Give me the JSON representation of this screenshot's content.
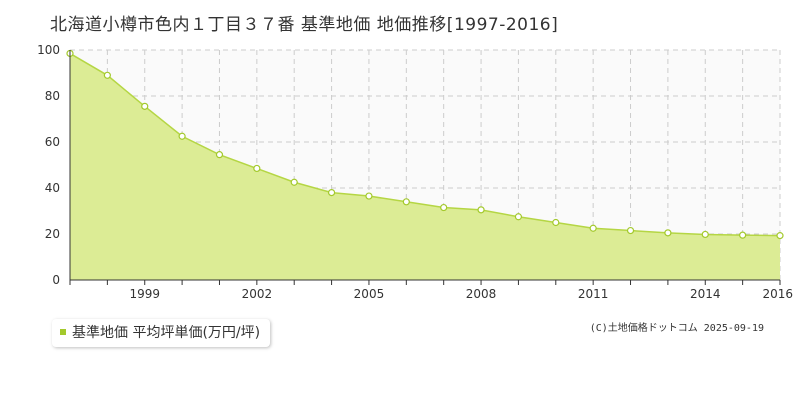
{
  "chart_data": {
    "type": "area",
    "title": "北海道小樽市色内１丁目３７番 基準地価 地価推移[1997-2016]",
    "x": [
      1997,
      1998,
      1999,
      2000,
      2001,
      2002,
      2003,
      2004,
      2005,
      2006,
      2007,
      2008,
      2009,
      2010,
      2011,
      2012,
      2013,
      2014,
      2015,
      2016
    ],
    "series": [
      {
        "name": "基準地価 平均坪単価(万円/坪)",
        "values": [
          98.5,
          89.0,
          75.5,
          62.5,
          54.5,
          48.5,
          42.5,
          38.0,
          36.5,
          34.0,
          31.5,
          30.5,
          27.5,
          25.0,
          22.5,
          21.5,
          20.5,
          19.8,
          19.5,
          19.3
        ]
      }
    ],
    "xlim": [
      1997,
      2016
    ],
    "ylim": [
      0,
      100
    ],
    "y_ticks": [
      0,
      20,
      40,
      60,
      80,
      100
    ],
    "x_tick_labels": [
      1999,
      2002,
      2005,
      2008,
      2011,
      2014,
      2016
    ],
    "grid": true,
    "legend_position": "bottom-left",
    "colors": {
      "fill": "#dcec95",
      "line": "#b5d644",
      "marker": "#a3c92c",
      "grid": "#cccccc",
      "legend_swatch": "#a3c92c"
    }
  },
  "copyright": "(C)土地価格ドットコム 2025-09-19"
}
